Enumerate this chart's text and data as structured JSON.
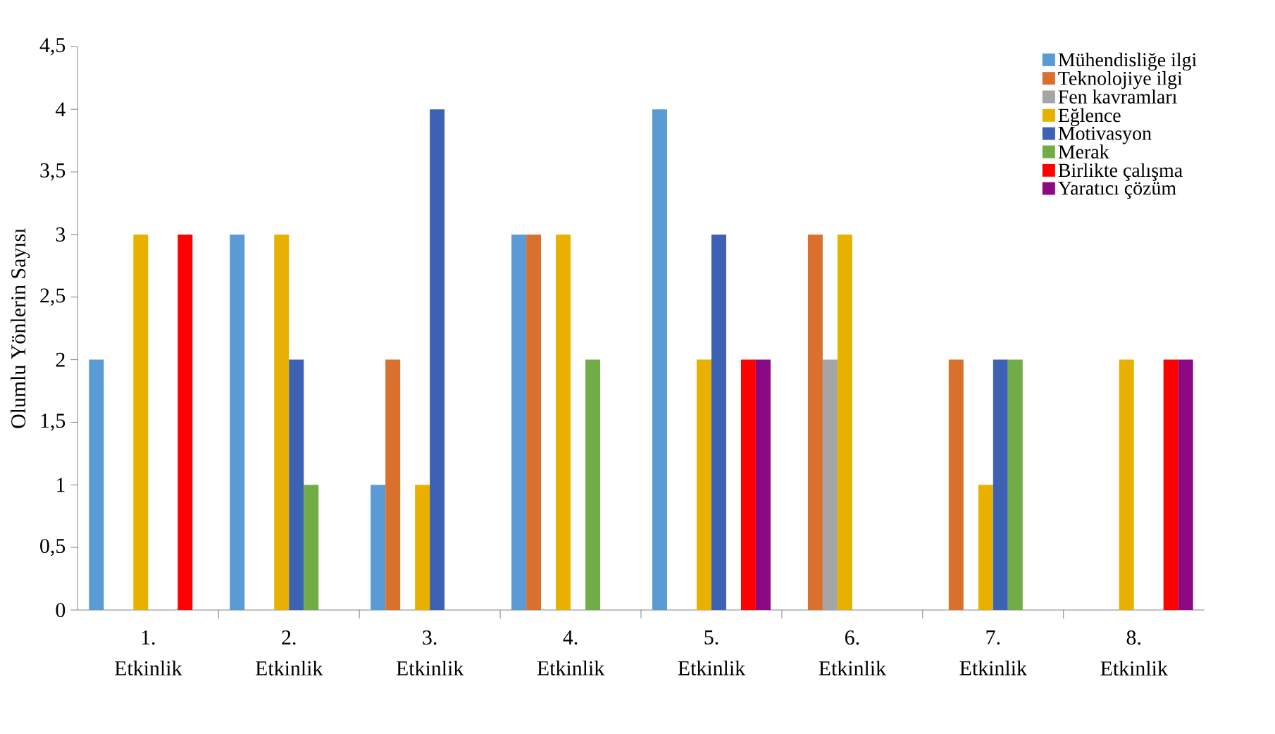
{
  "chart_data": {
    "type": "bar",
    "ylabel": "Olumlu Yönlerin Sayısı",
    "categories": [
      "1. Etkinlik",
      "2. Etkinlik",
      "3. Etkinlik",
      "4. Etkinlik",
      "5. Etkinlik",
      "6. Etkinlik",
      "7. Etkinlik",
      "8. Etkinlik"
    ],
    "series": [
      {
        "name": "Mühendisliğe ilgi",
        "color": "#5b9bd5",
        "values": [
          2,
          3,
          1,
          3,
          4,
          0,
          0,
          0
        ]
      },
      {
        "name": "Teknolojiye ilgi",
        "color": "#d9702d",
        "values": [
          0,
          0,
          2,
          3,
          0,
          3,
          2,
          0
        ]
      },
      {
        "name": "Fen kavramları",
        "color": "#a5a5a5",
        "values": [
          0,
          0,
          0,
          0,
          0,
          2,
          0,
          0
        ]
      },
      {
        "name": "Eğlence",
        "color": "#e8b100",
        "values": [
          3,
          3,
          1,
          3,
          2,
          3,
          1,
          2
        ]
      },
      {
        "name": "Motivasyon",
        "color": "#3d62b3",
        "values": [
          0,
          2,
          4,
          0,
          3,
          0,
          2,
          0
        ]
      },
      {
        "name": "Merak",
        "color": "#70ad47",
        "values": [
          0,
          1,
          0,
          2,
          0,
          0,
          2,
          0
        ]
      },
      {
        "name": "Birlikte çalışma",
        "color": "#ff0000",
        "values": [
          3,
          0,
          0,
          0,
          2,
          0,
          0,
          2
        ]
      },
      {
        "name": "Yaratıcı çözüm",
        "color": "#8b0a84",
        "values": [
          0,
          0,
          0,
          0,
          2,
          0,
          0,
          2
        ]
      }
    ],
    "ylim": [
      0,
      4.5
    ],
    "yticks": [
      0,
      {
        "value": 0.5,
        "label": "0,5"
      },
      1,
      {
        "value": 1.5,
        "label": "1,5"
      },
      2,
      {
        "value": 2.5,
        "label": "2,5"
      },
      3,
      {
        "value": 3.5,
        "label": "3,5"
      },
      4,
      {
        "value": 4.5,
        "label": "4,5"
      }
    ],
    "grid": false,
    "legend": "top right"
  }
}
